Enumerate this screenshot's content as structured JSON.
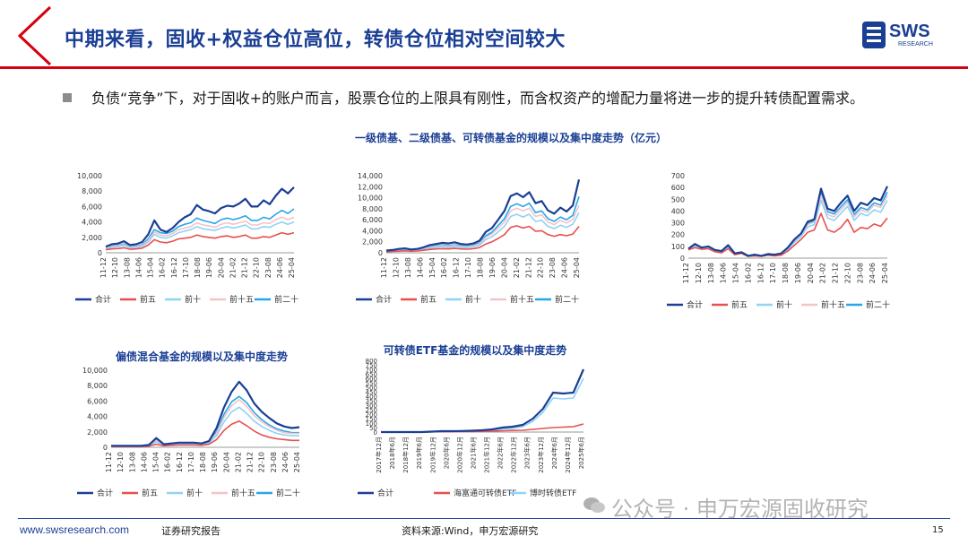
{
  "header": {
    "title": "中期来看，固收+权益仓位高位，转债仓位相对空间较大",
    "logo_text": "SWS",
    "logo_sub": "RESEARCH"
  },
  "bullet": {
    "text": "负债“竞争”下，对于固收+的账户而言，股票仓位的上限具有刚性，而含权资产的增配力量将进一步的提升转债配置需求。"
  },
  "section_title": "一级债基、二级债基、可转债基金的规模以及集中度走势（亿元）",
  "colors": {
    "navy": "#1b3f95",
    "red": "#e8504f",
    "light_blue": "#8fd3f5",
    "pink": "#f5c3c7",
    "blue": "#27a7e8"
  },
  "chart_data": [
    {
      "type": "line",
      "title": "",
      "x_ticks": [
        "11-12",
        "12-10",
        "13-08",
        "14-06",
        "15-04",
        "16-02",
        "16-12",
        "17-10",
        "18-08",
        "19-06",
        "20-04",
        "21-02",
        "21-12",
        "22-10",
        "23-08",
        "24-06",
        "25-04"
      ],
      "ylim": [
        0,
        10000
      ],
      "y_ticks": [
        "0",
        "2,000",
        "4,000",
        "6,000",
        "8,000",
        "10,000"
      ],
      "series": [
        {
          "name": "合计",
          "color": "#1b3f95",
          "values": [
            800,
            1100,
            1200,
            1500,
            1000,
            1100,
            1400,
            2400,
            4200,
            3000,
            2700,
            3200,
            4000,
            4600,
            5000,
            6200,
            5600,
            5400,
            5100,
            5800,
            6100,
            6000,
            6400,
            7000,
            6000,
            6000,
            6800,
            6300,
            7400,
            8300,
            7700,
            8500
          ]
        },
        {
          "name": "前五",
          "color": "#e8504f",
          "values": [
            400,
            500,
            550,
            650,
            450,
            500,
            600,
            1000,
            1700,
            1400,
            1300,
            1500,
            1800,
            1900,
            2000,
            2300,
            2100,
            2000,
            1900,
            2100,
            2200,
            2000,
            2100,
            2300,
            1900,
            1900,
            2100,
            2000,
            2300,
            2600,
            2400,
            2600
          ]
        },
        {
          "name": "前十",
          "color": "#8fd3f5",
          "values": [
            550,
            700,
            800,
            950,
            650,
            700,
            850,
            1400,
            2400,
            2000,
            1900,
            2200,
            2600,
            2800,
            3000,
            3400,
            3100,
            3000,
            2900,
            3200,
            3400,
            3200,
            3400,
            3600,
            3100,
            3100,
            3400,
            3300,
            3700,
            4000,
            3700,
            4000
          ]
        },
        {
          "name": "前十五",
          "color": "#f5c3c7",
          "values": [
            600,
            800,
            900,
            1050,
            750,
            800,
            950,
            1600,
            2700,
            2300,
            2200,
            2500,
            3000,
            3200,
            3400,
            3900,
            3600,
            3500,
            3300,
            3700,
            3900,
            3700,
            3900,
            4100,
            3600,
            3600,
            3900,
            3800,
            4300,
            4600,
            4300,
            4600
          ]
        },
        {
          "name": "前二十",
          "color": "#27a7e8",
          "values": [
            650,
            850,
            950,
            1150,
            800,
            850,
            1050,
            1800,
            3000,
            2600,
            2500,
            2800,
            3400,
            3700,
            3900,
            4500,
            4200,
            4000,
            3800,
            4300,
            4500,
            4300,
            4500,
            4800,
            4200,
            4200,
            4600,
            4400,
            5000,
            5500,
            5100,
            5700
          ]
        }
      ]
    },
    {
      "type": "line",
      "title": "",
      "x_ticks": [
        "11-12",
        "12-10",
        "13-08",
        "14-06",
        "15-04",
        "16-02",
        "16-12",
        "17-10",
        "18-08",
        "19-06",
        "20-04",
        "21-02",
        "21-12",
        "22-10",
        "23-08",
        "24-06",
        "25-04"
      ],
      "ylim": [
        0,
        14000
      ],
      "y_ticks": [
        "0",
        "2,000",
        "4,000",
        "6,000",
        "8,000",
        "10,000",
        "12,000",
        "14,000"
      ],
      "series": [
        {
          "name": "合计",
          "color": "#1b3f95",
          "values": [
            400,
            500,
            700,
            800,
            600,
            700,
            1000,
            1400,
            1600,
            1800,
            1700,
            1900,
            1600,
            1500,
            1700,
            2200,
            3800,
            4500,
            6000,
            7600,
            10300,
            10800,
            10100,
            11000,
            9000,
            9400,
            7700,
            7100,
            8200,
            7500,
            8600,
            13300
          ]
        },
        {
          "name": "前五",
          "color": "#e8504f",
          "values": [
            200,
            250,
            300,
            350,
            300,
            320,
            450,
            600,
            700,
            750,
            700,
            800,
            700,
            650,
            750,
            950,
            1600,
            2000,
            2600,
            3300,
            4600,
            4900,
            4500,
            4800,
            3900,
            4000,
            3300,
            3000,
            3300,
            3100,
            3400,
            4800
          ]
        },
        {
          "name": "前十",
          "color": "#8fd3f5",
          "values": [
            300,
            350,
            450,
            500,
            420,
            450,
            650,
            850,
            1000,
            1100,
            1000,
            1150,
            1000,
            950,
            1100,
            1400,
            2400,
            2900,
            3800,
            4800,
            6600,
            7000,
            6500,
            7000,
            5700,
            5900,
            4800,
            4400,
            5000,
            4600,
            5200,
            7300
          ]
        },
        {
          "name": "前十五",
          "color": "#f5c3c7",
          "values": [
            330,
            400,
            520,
            580,
            480,
            520,
            750,
            980,
            1150,
            1280,
            1180,
            1330,
            1150,
            1100,
            1270,
            1620,
            2800,
            3400,
            4500,
            5600,
            7600,
            8100,
            7600,
            8100,
            6600,
            6900,
            5600,
            5100,
            5900,
            5400,
            6100,
            8600
          ]
        },
        {
          "name": "前二十",
          "color": "#27a7e8",
          "values": [
            360,
            440,
            570,
            640,
            530,
            570,
            820,
            1080,
            1270,
            1420,
            1310,
            1470,
            1270,
            1210,
            1400,
            1790,
            3100,
            3750,
            4950,
            6200,
            8400,
            8900,
            8400,
            9000,
            7300,
            7600,
            6200,
            5700,
            6500,
            6000,
            6800,
            10200
          ]
        }
      ]
    },
    {
      "type": "line",
      "title": "",
      "x_ticks": [
        "11-12",
        "12-10",
        "13-08",
        "14-06",
        "15-04",
        "16-02",
        "16-12",
        "17-10",
        "18-08",
        "19-06",
        "20-04",
        "21-02",
        "21-12",
        "22-10",
        "23-08",
        "24-06",
        "25-04"
      ],
      "ylim": [
        0,
        700
      ],
      "y_ticks": [
        "0",
        "100",
        "200",
        "300",
        "400",
        "500",
        "600",
        "700"
      ],
      "series": [
        {
          "name": "合计",
          "color": "#1b3f95",
          "values": [
            80,
            120,
            90,
            100,
            70,
            60,
            110,
            40,
            50,
            20,
            30,
            20,
            35,
            30,
            40,
            90,
            160,
            210,
            310,
            330,
            590,
            420,
            400,
            470,
            530,
            400,
            470,
            450,
            510,
            490,
            610
          ]
        },
        {
          "name": "前五",
          "color": "#e8504f",
          "values": [
            70,
            90,
            75,
            80,
            55,
            45,
            80,
            30,
            40,
            15,
            20,
            15,
            25,
            20,
            25,
            60,
            110,
            160,
            220,
            240,
            380,
            240,
            220,
            260,
            330,
            220,
            260,
            250,
            290,
            270,
            340
          ]
        },
        {
          "name": "前十",
          "color": "#8fd3f5",
          "values": [
            75,
            105,
            82,
            90,
            62,
            52,
            92,
            35,
            45,
            17,
            25,
            17,
            30,
            25,
            32,
            75,
            135,
            185,
            265,
            285,
            490,
            340,
            320,
            380,
            440,
            320,
            380,
            360,
            410,
            390,
            490
          ]
        },
        {
          "name": "前十五",
          "color": "#f5c3c7",
          "values": [
            77,
            110,
            85,
            94,
            65,
            55,
            97,
            37,
            47,
            18,
            27,
            18,
            32,
            27,
            35,
            80,
            145,
            195,
            285,
            305,
            530,
            370,
            350,
            410,
            470,
            350,
            410,
            390,
            450,
            430,
            530
          ]
        },
        {
          "name": "前二十",
          "color": "#27a7e8",
          "values": [
            78,
            115,
            88,
            97,
            68,
            57,
            102,
            39,
            48,
            19,
            28,
            19,
            33,
            28,
            37,
            85,
            150,
            200,
            295,
            315,
            555,
            395,
            375,
            435,
            495,
            370,
            430,
            410,
            470,
            450,
            560
          ]
        }
      ]
    },
    {
      "type": "line",
      "title": "偏债混合基金的规模以及集中度走势",
      "x_ticks": [
        "11-12",
        "12-10",
        "13-08",
        "14-06",
        "15-04",
        "16-02",
        "16-12",
        "17-10",
        "18-08",
        "19-06",
        "20-04",
        "21-02",
        "21-12",
        "22-10",
        "23-08",
        "24-06",
        "25-04"
      ],
      "ylim": [
        0,
        10000
      ],
      "y_ticks": [
        "0",
        "2,000",
        "4,000",
        "6,000",
        "8,000",
        "10,000"
      ],
      "series": [
        {
          "name": "合计",
          "color": "#1b3f95",
          "values": [
            200,
            200,
            200,
            200,
            200,
            300,
            1200,
            400,
            500,
            600,
            600,
            600,
            500,
            800,
            2500,
            5200,
            7200,
            8500,
            7400,
            5700,
            4600,
            3800,
            3100,
            2700,
            2500,
            2600
          ]
        },
        {
          "name": "前五",
          "color": "#e8504f",
          "values": [
            100,
            100,
            100,
            100,
            100,
            150,
            400,
            200,
            250,
            300,
            300,
            300,
            250,
            400,
            1000,
            2200,
            3000,
            3400,
            2800,
            2100,
            1600,
            1300,
            1100,
            1000,
            900,
            900
          ]
        },
        {
          "name": "前十",
          "color": "#8fd3f5",
          "values": [
            150,
            150,
            150,
            150,
            150,
            220,
            700,
            300,
            350,
            420,
            420,
            420,
            350,
            550,
            1500,
            3300,
            4600,
            5200,
            4400,
            3400,
            2700,
            2200,
            1800,
            1600,
            1500,
            1500
          ]
        },
        {
          "name": "前十五",
          "color": "#f5c3c7",
          "values": [
            170,
            170,
            170,
            170,
            170,
            250,
            900,
            340,
            400,
            480,
            480,
            480,
            400,
            620,
            1800,
            3900,
            5400,
            6200,
            5300,
            4100,
            3300,
            2700,
            2200,
            1900,
            1800,
            1800
          ]
        },
        {
          "name": "前二十",
          "color": "#27a7e8",
          "values": [
            180,
            180,
            180,
            180,
            180,
            270,
            1000,
            360,
            430,
            520,
            520,
            520,
            430,
            680,
            2000,
            4300,
            5900,
            6600,
            5800,
            4500,
            3600,
            2900,
            2400,
            2100,
            1900,
            1900
          ]
        }
      ]
    },
    {
      "type": "line",
      "title": "可转债ETF基金的规模以及集中度走势",
      "x_ticks": [
        "2017年12月",
        "2018年6月",
        "2018年12月",
        "2019年6月",
        "2019年12月",
        "2020年6月",
        "2020年12月",
        "2021年6月",
        "2021年12月",
        "2022年6月",
        "2022年12月",
        "2023年6月",
        "2023年12月",
        "2024年6月",
        "2024年12月",
        "2025年6月"
      ],
      "ylim": [
        0,
        800
      ],
      "y_ticks": [
        "0",
        "50",
        "100",
        "150",
        "200",
        "250",
        "300",
        "350",
        "400",
        "450",
        "500",
        "550",
        "600",
        "650",
        "700",
        "750",
        "800"
      ],
      "series": [
        {
          "name": "合计",
          "color": "#1b3f95",
          "values": [
            0,
            0,
            0,
            0,
            0,
            5,
            10,
            10,
            12,
            15,
            20,
            30,
            50,
            60,
            80,
            150,
            260,
            440,
            430,
            440,
            700
          ]
        },
        {
          "name": "海富通可转债ETF",
          "color": "#e8504f",
          "values": [
            0,
            0,
            0,
            0,
            0,
            2,
            4,
            4,
            5,
            6,
            8,
            10,
            15,
            18,
            20,
            30,
            40,
            50,
            55,
            60,
            90
          ]
        },
        {
          "name": "博时转债ETF",
          "color": "#8fd3f5",
          "values": [
            0,
            0,
            0,
            0,
            0,
            3,
            6,
            6,
            7,
            9,
            12,
            20,
            35,
            42,
            60,
            120,
            220,
            380,
            370,
            380,
            600
          ]
        }
      ]
    }
  ],
  "footer": {
    "url": "www.swsresearch.com",
    "report": "证券研究报告",
    "source": "资料来源:Wind，申万宏源研究",
    "page": "15",
    "watermark": "公众号 · 申万宏源固收研究"
  }
}
